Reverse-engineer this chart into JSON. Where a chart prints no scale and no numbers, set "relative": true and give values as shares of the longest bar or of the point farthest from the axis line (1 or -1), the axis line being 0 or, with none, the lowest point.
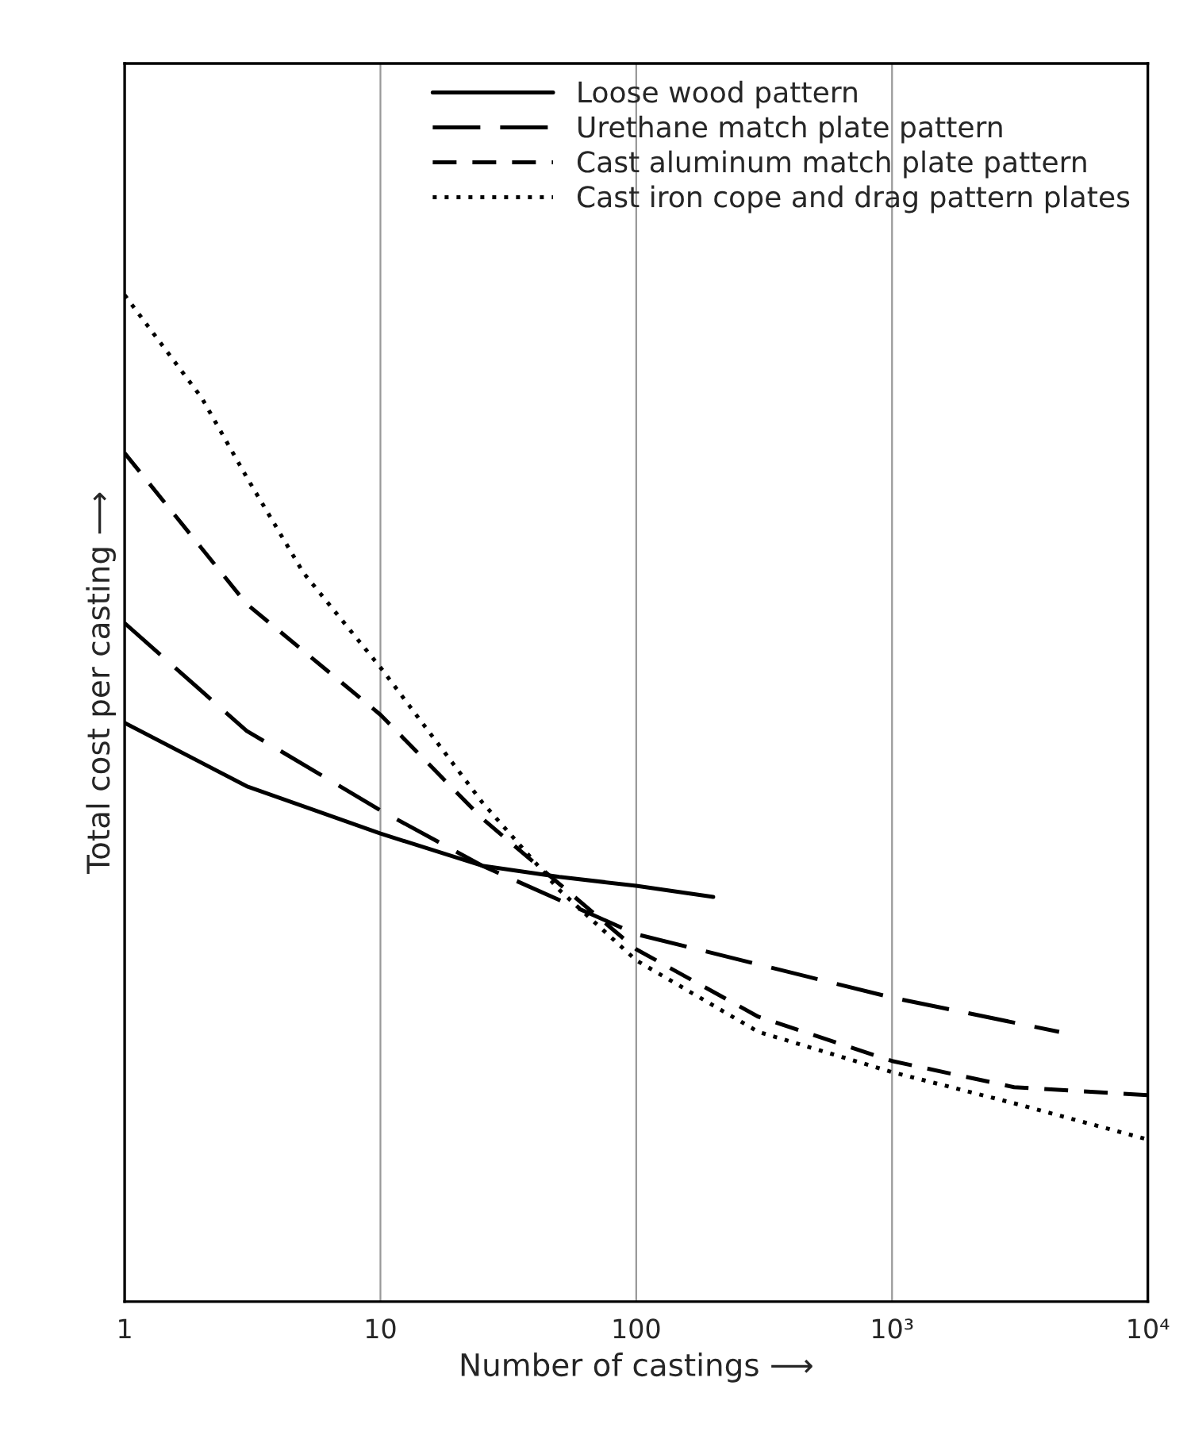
{
  "chart_data": {
    "type": "line",
    "relative": true,
    "log": "x",
    "grid": "x",
    "legend": "top right",
    "xlabel": "Number of castings ⟶",
    "ylabel": "Total cost per casting ⟶",
    "xlim": [
      1,
      10000
    ],
    "xticks": [
      1,
      10,
      100,
      {
        "value": 1000,
        "label": "10³"
      },
      {
        "value": 10000,
        "label": "10⁴"
      }
    ],
    "series": [
      {
        "name": "Loose wood pattern",
        "color": "#000000",
        "line_style": "solid",
        "x": [
          1,
          3,
          10,
          25,
          50,
          100,
          200
        ],
        "values": [
          0.575,
          0.512,
          0.465,
          0.433,
          0.422,
          0.413,
          0.402
        ]
      },
      {
        "name": "Urethane match plate pattern",
        "color": "#000000",
        "line_style": "longdash",
        "x": [
          1,
          3,
          10,
          25,
          100,
          1000,
          4500
        ],
        "values": [
          0.674,
          0.567,
          0.488,
          0.433,
          0.365,
          0.302,
          0.268
        ]
      },
      {
        "name": "Cast aluminum match plate pattern",
        "color": "#000000",
        "line_style": "dashed",
        "x": [
          1,
          3,
          10,
          25,
          100,
          300,
          1000,
          3000,
          10000
        ],
        "values": [
          0.843,
          0.693,
          0.583,
          0.48,
          0.35,
          0.283,
          0.239,
          0.213,
          0.205
        ]
      },
      {
        "name": "Cast iron cope and drag pattern plates",
        "color": "#000000",
        "line_style": "dotted",
        "x": [
          1,
          2,
          3,
          5,
          10,
          25,
          50,
          100,
          300,
          1000,
          3000,
          10000
        ],
        "values": [
          1.0,
          0.898,
          0.819,
          0.724,
          0.63,
          0.496,
          0.409,
          0.339,
          0.268,
          0.228,
          0.197,
          0.161
        ]
      }
    ]
  }
}
